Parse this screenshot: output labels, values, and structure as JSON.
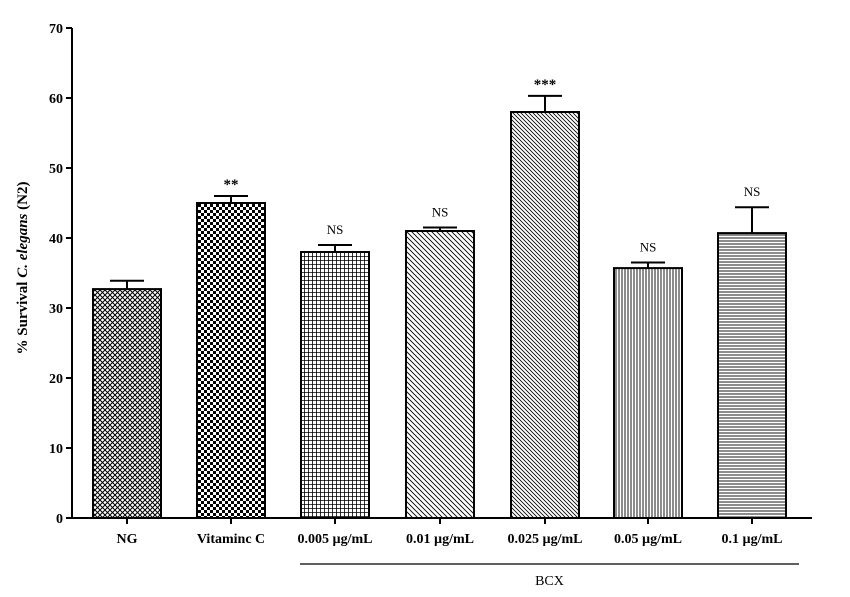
{
  "chart_data": {
    "type": "bar",
    "title": "",
    "ylabel": "% Survival C. elegans (N2)",
    "ylabel_parts": [
      "% Survival ",
      "C. elegans",
      " (N2)"
    ],
    "xlabel": "",
    "ylim": [
      0,
      70
    ],
    "yticks": [
      0,
      10,
      20,
      30,
      40,
      50,
      60,
      70
    ],
    "grid": false,
    "categories": [
      "NG",
      "Vitaminc C",
      "0.005 µg/mL",
      "0.01 µg/mL",
      "0.025 µg/mL",
      "0.05 µg/mL",
      "0.1 µg/mL"
    ],
    "values": [
      32.7,
      45.0,
      38.0,
      41.0,
      58.0,
      35.7,
      40.7
    ],
    "errors": [
      1.2,
      1.0,
      1.0,
      0.5,
      2.3,
      0.8,
      3.7
    ],
    "annotations": [
      "",
      "**",
      "NS",
      "NS",
      "***",
      "NS",
      "NS"
    ],
    "patterns": [
      "diamond-crosshatch",
      "checkerboard",
      "grid",
      "diagonal-down",
      "diagonal-down-dense",
      "vertical-lines",
      "horizontal-lines"
    ],
    "group": {
      "label": "BCX",
      "categories": [
        "0.005 µg/mL",
        "0.01 µg/mL",
        "0.025 µg/mL",
        "0.05 µg/mL",
        "0.1 µg/mL"
      ]
    },
    "colors": {
      "bar_stroke": "#000000",
      "bar_fill": "#ffffff",
      "pattern": "#000000"
    }
  }
}
